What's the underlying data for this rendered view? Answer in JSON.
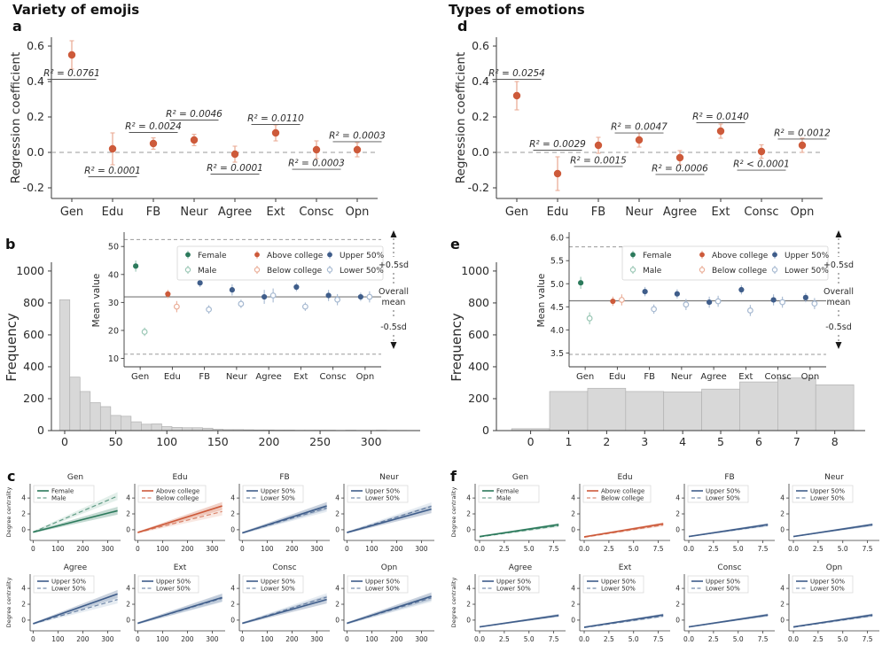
{
  "figure": {
    "left_column_title": "Variety of emojis",
    "right_column_title": "Types of emotions"
  },
  "colors": {
    "orange": "#cd5a3a",
    "orange_light": "#eaad97",
    "green": "#2c7a5c",
    "green_light": "#9ac7b5",
    "blue": "#3f5d8a",
    "blue_light": "#a6b9d1",
    "bar_fill": "#d8d8d8",
    "bar_edge": "#b2b2b2",
    "axis": "#3a3a3a",
    "ref": "#9a9a9a",
    "text": "#2b2b2b"
  },
  "chart_data": [
    {
      "panel": "a",
      "panel_label": "a",
      "type": "coef_scatter",
      "ylabel": "Regression coefficient",
      "categories": [
        "Gen",
        "Edu",
        "FB",
        "Neur",
        "Agree",
        "Ext",
        "Consc",
        "Opn"
      ],
      "values": [
        0.55,
        0.02,
        0.05,
        0.07,
        -0.01,
        0.11,
        0.015,
        0.015
      ],
      "errors": [
        0.08,
        0.09,
        0.032,
        0.032,
        0.045,
        0.045,
        0.05,
        0.04
      ],
      "r2_labels": [
        "R² = 0.0761",
        "R² = 0.0001",
        "R² = 0.0024",
        "R² = 0.0046",
        "R² = 0.0001",
        "R² = 0.0110",
        "R² = 0.0003",
        "R² = 0.0003"
      ],
      "r2_y": [
        0.43,
        -0.12,
        0.13,
        0.2,
        -0.105,
        0.175,
        -0.078,
        0.078
      ],
      "ylim": [
        -0.26,
        0.65
      ],
      "ytick_vals": [
        -0.2,
        0.0,
        0.2,
        0.4,
        0.6
      ],
      "ytick_labels": [
        "-0.2",
        "0.0",
        "0.2",
        "0.4",
        "0.6"
      ],
      "zero_line": 0
    },
    {
      "panel": "d",
      "panel_label": "d",
      "type": "coef_scatter",
      "ylabel": "Regression coefficient",
      "categories": [
        "Gen",
        "Edu",
        "FB",
        "Neur",
        "Agree",
        "Ext",
        "Consc",
        "Opn"
      ],
      "values": [
        0.32,
        -0.12,
        0.04,
        0.07,
        -0.03,
        0.12,
        0.005,
        0.04
      ],
      "errors": [
        0.08,
        0.095,
        0.045,
        0.04,
        0.04,
        0.04,
        0.038,
        0.04
      ],
      "r2_labels": [
        "R² = 0.0254",
        "R² = 0.0029",
        "R² = 0.0015",
        "R² = 0.0047",
        "R² = 0.0006",
        "R² = 0.0140",
        "R² < 0.0001",
        "R² = 0.0012"
      ],
      "r2_y": [
        0.43,
        0.03,
        -0.062,
        0.127,
        -0.107,
        0.185,
        -0.083,
        0.093
      ],
      "ylim": [
        -0.26,
        0.65
      ],
      "ytick_vals": [
        -0.2,
        0.0,
        0.2,
        0.4,
        0.6
      ],
      "ytick_labels": [
        "-0.2",
        "0.0",
        "0.2",
        "0.4",
        "0.6"
      ],
      "zero_line": 0
    },
    {
      "panel": "b",
      "panel_label": "b",
      "type": "hist_inset",
      "hist": {
        "ylabel": "Frequency",
        "bin_start": -5,
        "bin_width": 10,
        "counts": [
          820,
          335,
          245,
          175,
          150,
          95,
          90,
          55,
          40,
          42,
          25,
          20,
          18,
          18,
          15,
          8,
          6,
          6,
          5,
          4,
          4,
          3,
          3,
          2,
          2,
          2,
          2,
          1,
          2,
          1,
          1,
          2,
          1,
          1
        ],
        "xlim": [
          -13,
          348
        ],
        "ylim": [
          0,
          1055
        ],
        "xtick_vals": [
          0,
          50,
          100,
          150,
          200,
          250,
          300
        ],
        "xtick_labels": [
          "0",
          "50",
          "100",
          "150",
          "200",
          "250",
          "300"
        ],
        "ytick_vals": [
          0,
          200,
          400,
          600,
          800,
          1000
        ],
        "ytick_labels": [
          "0",
          "200",
          "400",
          "600",
          "800",
          "1000"
        ]
      },
      "inset": {
        "ylabel": "Mean value",
        "categories": [
          "Gen",
          "Edu",
          "FB",
          "Neur",
          "Agree",
          "Ext",
          "Consc",
          "Opn"
        ],
        "colors_by_cat": [
          "green",
          "orange",
          "blue",
          "blue",
          "blue",
          "blue",
          "blue",
          "blue"
        ],
        "filled": [
          43,
          33,
          37,
          34.5,
          32,
          35.5,
          32.5,
          32
        ],
        "filled_err": [
          2,
          1.5,
          1.5,
          2,
          2.5,
          1.5,
          2,
          1.5
        ],
        "open": [
          19.5,
          28.5,
          27.5,
          29.5,
          32.5,
          28.5,
          31,
          32
        ],
        "open_err": [
          1.5,
          2,
          1.5,
          1.5,
          2.5,
          1.5,
          2,
          2
        ],
        "ylim": [
          7,
          54.5
        ],
        "ytick_vals": [
          10,
          20,
          30,
          40,
          50
        ],
        "ytick_labels": [
          "10",
          "20",
          "30",
          "40",
          "50"
        ],
        "mean": 32,
        "upper": 52.5,
        "lower": 11.5,
        "legend": [
          {
            "label": "Female",
            "color": "green",
            "filled": true
          },
          {
            "label": "Male",
            "color": "green",
            "filled": false
          },
          {
            "label": "Above college",
            "color": "orange",
            "filled": true
          },
          {
            "label": "Below college",
            "color": "orange",
            "filled": false
          },
          {
            "label": "Upper 50%",
            "color": "blue",
            "filled": true
          },
          {
            "label": "Lower 50%",
            "color": "blue",
            "filled": false
          }
        ],
        "annotations": {
          "upper": "+0.5sd",
          "mean1": "Overall",
          "mean2": "mean",
          "lower": "-0.5sd"
        }
      }
    },
    {
      "panel": "e",
      "panel_label": "e",
      "type": "hist_inset",
      "hist": {
        "ylabel": "Frequency",
        "bin_start": -0.5,
        "bin_width": 1,
        "counts": [
          12,
          245,
          265,
          245,
          243,
          260,
          305,
          330,
          287
        ],
        "xlim": [
          -0.9,
          8.8
        ],
        "ylim": [
          0,
          1055
        ],
        "xtick_vals": [
          0,
          1,
          2,
          3,
          4,
          5,
          6,
          7,
          8
        ],
        "xtick_labels": [
          "0",
          "1",
          "2",
          "3",
          "4",
          "5",
          "6",
          "7",
          "8"
        ],
        "ytick_vals": [
          0,
          200,
          400,
          600,
          800,
          1000
        ],
        "ytick_labels": [
          "0",
          "200",
          "400",
          "600",
          "800",
          "1000"
        ]
      },
      "inset": {
        "ylabel": "Mean value",
        "categories": [
          "Gen",
          "Edu",
          "FB",
          "Neur",
          "Agree",
          "Ext",
          "Consc",
          "Opn"
        ],
        "colors_by_cat": [
          "green",
          "orange",
          "blue",
          "blue",
          "blue",
          "blue",
          "blue",
          "blue"
        ],
        "filled": [
          5.02,
          4.62,
          4.83,
          4.78,
          4.6,
          4.87,
          4.65,
          4.7
        ],
        "filled_err": [
          0.13,
          0.1,
          0.1,
          0.1,
          0.12,
          0.1,
          0.12,
          0.1
        ],
        "open": [
          4.25,
          4.65,
          4.45,
          4.55,
          4.62,
          4.42,
          4.6,
          4.57
        ],
        "open_err": [
          0.13,
          0.12,
          0.1,
          0.12,
          0.12,
          0.12,
          0.12,
          0.12
        ],
        "ylim": [
          3.2,
          6.08
        ],
        "ytick_vals": [
          3.5,
          4.0,
          4.5,
          5.0,
          5.5,
          6.0
        ],
        "ytick_labels": [
          "3.5",
          "4.0",
          "4.5",
          "5.0",
          "5.5",
          "6.0"
        ],
        "mean": 4.63,
        "upper": 5.8,
        "lower": 3.47,
        "legend": [
          {
            "label": "Female",
            "color": "green",
            "filled": true
          },
          {
            "label": "Male",
            "color": "green",
            "filled": false
          },
          {
            "label": "Above college",
            "color": "orange",
            "filled": true
          },
          {
            "label": "Below college",
            "color": "orange",
            "filled": false
          },
          {
            "label": "Upper 50%",
            "color": "blue",
            "filled": true
          },
          {
            "label": "Lower 50%",
            "color": "blue",
            "filled": false
          }
        ],
        "annotations": {
          "upper": "+0.5sd",
          "mean1": "Overall",
          "mean2": "mean",
          "lower": "-0.5sd"
        }
      }
    },
    {
      "panel": "c",
      "panel_label": "c",
      "type": "line_grid",
      "ylabel": "Degree centrality",
      "xlim": [
        -12,
        352
      ],
      "x_start": 0,
      "x_end": 340,
      "xtick_vals": [
        0,
        100,
        200,
        300
      ],
      "xtick_labels": [
        "0",
        "100",
        "200",
        "300"
      ],
      "ylim": [
        -1.35,
        5.8
      ],
      "ytick_vals": [
        0,
        2,
        4
      ],
      "ytick_labels": [
        "0",
        "2",
        "4"
      ],
      "band_w": [
        0.12,
        0.5
      ],
      "subplots": [
        {
          "title": "Gen",
          "color": "green",
          "solid_label": "Female",
          "dashed_label": "Male",
          "solid_y": [
            -0.3,
            2.4
          ],
          "dashed_y": [
            -0.3,
            4.25
          ]
        },
        {
          "title": "Edu",
          "color": "orange",
          "solid_label": "Above college",
          "dashed_label": "Below college",
          "solid_y": [
            -0.35,
            3.0
          ],
          "dashed_y": [
            -0.35,
            2.3
          ]
        },
        {
          "title": "FB",
          "color": "blue",
          "solid_label": "Upper 50%",
          "dashed_label": "Lower 50%",
          "solid_y": [
            -0.4,
            3.0
          ],
          "dashed_y": [
            -0.4,
            2.75
          ]
        },
        {
          "title": "Neur",
          "color": "blue",
          "solid_label": "Upper 50%",
          "dashed_label": "Lower 50%",
          "solid_y": [
            -0.35,
            2.6
          ],
          "dashed_y": [
            -0.35,
            2.95
          ]
        },
        {
          "title": "Agree",
          "color": "blue",
          "solid_label": "Upper 50%",
          "dashed_label": "Lower 50%",
          "solid_y": [
            -0.45,
            3.3
          ],
          "dashed_y": [
            -0.45,
            2.6
          ]
        },
        {
          "title": "Ext",
          "color": "blue",
          "solid_label": "Upper 50%",
          "dashed_label": "Lower 50%",
          "solid_y": [
            -0.4,
            2.85
          ],
          "dashed_y": [
            -0.4,
            2.75
          ]
        },
        {
          "title": "Consc",
          "color": "blue",
          "solid_label": "Upper 50%",
          "dashed_label": "Lower 50%",
          "solid_y": [
            -0.4,
            2.6
          ],
          "dashed_y": [
            -0.4,
            2.9
          ]
        },
        {
          "title": "Opn",
          "color": "blue",
          "solid_label": "Upper 50%",
          "dashed_label": "Lower 50%",
          "solid_y": [
            -0.4,
            3.0
          ],
          "dashed_y": [
            -0.4,
            2.8
          ]
        }
      ]
    },
    {
      "panel": "f",
      "panel_label": "f",
      "type": "line_grid",
      "ylabel": "Degree centrality",
      "xlim": [
        -0.45,
        8.7
      ],
      "x_start": 0,
      "x_end": 8,
      "xtick_vals": [
        0,
        2.5,
        5,
        7.5
      ],
      "xtick_labels": [
        "0.0",
        "2.5",
        "5.0",
        "7.5"
      ],
      "ylim": [
        -1.35,
        5.8
      ],
      "ytick_vals": [
        0,
        2,
        4
      ],
      "ytick_labels": [
        "0",
        "2",
        "4"
      ],
      "band_w": [
        0.06,
        0.18
      ],
      "subplots": [
        {
          "title": "Gen",
          "color": "green",
          "solid_label": "Female",
          "dashed_label": "Male",
          "solid_y": [
            -0.85,
            0.65
          ],
          "dashed_y": [
            -0.9,
            0.5
          ]
        },
        {
          "title": "Edu",
          "color": "orange",
          "solid_label": "Above college",
          "dashed_label": "Below college",
          "solid_y": [
            -0.9,
            0.75
          ],
          "dashed_y": [
            -0.95,
            0.6
          ]
        },
        {
          "title": "FB",
          "color": "blue",
          "solid_label": "Upper 50%",
          "dashed_label": "Lower 50%",
          "solid_y": [
            -0.85,
            0.65
          ],
          "dashed_y": [
            -0.85,
            0.55
          ]
        },
        {
          "title": "Neur",
          "color": "blue",
          "solid_label": "Upper 50%",
          "dashed_label": "Lower 50%",
          "solid_y": [
            -0.85,
            0.65
          ],
          "dashed_y": [
            -0.85,
            0.6
          ]
        },
        {
          "title": "Agree",
          "color": "blue",
          "solid_label": "Upper 50%",
          "dashed_label": "Lower 50%",
          "solid_y": [
            -0.85,
            0.6
          ],
          "dashed_y": [
            -0.85,
            0.55
          ]
        },
        {
          "title": "Ext",
          "color": "blue",
          "solid_label": "Upper 50%",
          "dashed_label": "Lower 50%",
          "solid_y": [
            -0.9,
            0.65
          ],
          "dashed_y": [
            -0.95,
            0.5
          ]
        },
        {
          "title": "Consc",
          "color": "blue",
          "solid_label": "Upper 50%",
          "dashed_label": "Lower 50%",
          "solid_y": [
            -0.85,
            0.65
          ],
          "dashed_y": [
            -0.85,
            0.6
          ]
        },
        {
          "title": "Opn",
          "color": "blue",
          "solid_label": "Upper 50%",
          "dashed_label": "Lower 50%",
          "solid_y": [
            -0.85,
            0.65
          ],
          "dashed_y": [
            -0.9,
            0.55
          ]
        }
      ]
    }
  ]
}
